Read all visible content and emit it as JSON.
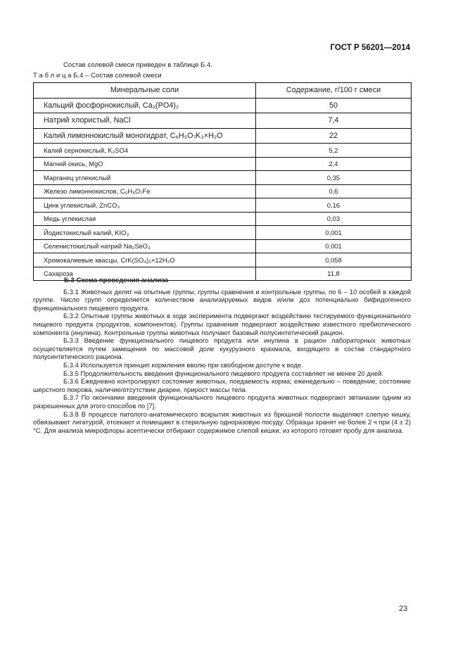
{
  "header": {
    "doc_code": "ГОСТ Р 56201—2014"
  },
  "intro": "Состав солевой смеси приведен в таблице Б.4.",
  "table": {
    "caption": "Т а б л и ц а Б.4 – Состав солевой смеси",
    "columns": [
      "Минеральные соли",
      "Содержание, г/100 г смеси"
    ],
    "rows": [
      [
        "Кальций фосфорнокислый, Ca₃(PO4)₂",
        "50"
      ],
      [
        "Натрий хлористый, NaCl",
        "7,4"
      ],
      [
        "Калий лимоннокислый моногидрат, C₆H₅O₇K₃×H₂O",
        "22"
      ],
      [
        "Калий сернокислый, K₂SO4",
        "5,2"
      ],
      [
        "Магний окись, MgO",
        "2,4"
      ],
      [
        "Марганец углекислый",
        "0,35"
      ],
      [
        "Железо лимоннокислов, C₆H₅O₇Fe",
        "0,6"
      ],
      [
        "Цинк углекислый, ZnCO₃",
        "0,16"
      ],
      [
        "Медь углекислая",
        "0,03"
      ],
      [
        "Йодистокислый калий, KIO₃",
        "0,001"
      ],
      [
        "Селенистокислый натрий Na₂SeO₃",
        "0,001"
      ],
      [
        "Хромокалиевые квасцы, CrK(SO₄)₂×12H₂O",
        "0,058"
      ],
      [
        "Сахароза",
        "11,8"
      ]
    ]
  },
  "section": {
    "title": "Б.3 Схема проведения анализа",
    "paragraphs": [
      "Б.3.1 Животных делят на опытные группы, группы сравнения и контрольные группы, по 6 – 10 особей в каждой группе. Число групп определяется количеством анализируемых видов и/или доз потенциально бифидогенного функционального пищевого продукта.",
      "Б.3.2 Опытные группы животных в ходе эксперимента подвергают воздействию тестируемого функционального пищевого продукта (продуктов, компонентов). Группы сравнения подвергают воздействию известного пребиотического компонента (инулина). Контрольные группы животных получают базовый полусинтетический рацион.",
      "Б.3.3 Введение функционального пищевого продукта или инулина в рацион лабораторных животных осуществляется путем замещения по массовой доле кукурузного крахмала, входящего в состав стандартного полусинтетического рациона.",
      "Б.3.4 Используется принцип кормления вволю при свободном доступе к воде.",
      "Б.3.5 Продолжительность введения функционального пищевого продукта составляет не менее 20 дней.",
      "Б.3.6 Ежедневно контролируют состояние животных, поедаемость корма; еженедельно – поведение, состояние шерстного покрова, наличие/отсутствие диареи, прирост массы тела.",
      "Б.3.7 По окончании введения функционального пищевого продукта животных подвергают эвтаназии одним из разрешенных для этого способов по [7].",
      "Б.3.8 В процессе патолого-анатомического вскрытия животных из брюшной полости выделяют слепую кишку, обвязывают лигатурой, отсекают и помещают в стерильную одноразовую посуду. Образцы хранят не более 2 ч при (4 ± 2) °С. Для анализа микрофлоры асептически отбирают содержимое слепой кишки, из которого готовят пробу для анализа."
    ]
  },
  "page_number": "23"
}
